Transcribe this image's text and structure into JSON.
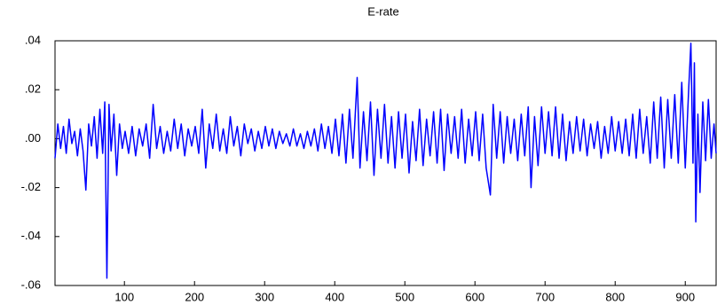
{
  "chart_data": {
    "type": "line",
    "title": "E-rate",
    "x": [
      1,
      5,
      9,
      13,
      17,
      21,
      25,
      29,
      33,
      37,
      41,
      45,
      49,
      53,
      57,
      61,
      65,
      69,
      72,
      75,
      78,
      81,
      85,
      89,
      93,
      97,
      101,
      106,
      111,
      116,
      121,
      126,
      131,
      136,
      141,
      146,
      151,
      156,
      161,
      166,
      171,
      176,
      181,
      186,
      191,
      196,
      201,
      206,
      211,
      216,
      221,
      226,
      231,
      236,
      241,
      246,
      251,
      256,
      261,
      266,
      271,
      276,
      281,
      286,
      291,
      296,
      301,
      306,
      311,
      316,
      321,
      326,
      331,
      336,
      341,
      346,
      351,
      356,
      361,
      366,
      371,
      376,
      381,
      386,
      391,
      396,
      401,
      406,
      411,
      416,
      421,
      426,
      432,
      436,
      441,
      446,
      451,
      456,
      461,
      466,
      471,
      476,
      481,
      486,
      491,
      496,
      501,
      506,
      511,
      516,
      521,
      526,
      531,
      536,
      541,
      546,
      551,
      556,
      561,
      566,
      571,
      576,
      581,
      586,
      591,
      596,
      601,
      606,
      611,
      616,
      622,
      626,
      631,
      636,
      641,
      646,
      651,
      656,
      661,
      666,
      671,
      676,
      680,
      685,
      690,
      695,
      700,
      705,
      710,
      715,
      720,
      725,
      730,
      735,
      740,
      745,
      750,
      755,
      760,
      765,
      770,
      775,
      780,
      785,
      790,
      795,
      800,
      805,
      810,
      815,
      820,
      825,
      830,
      835,
      840,
      845,
      850,
      855,
      860,
      865,
      870,
      875,
      880,
      885,
      890,
      895,
      900,
      905,
      908,
      911,
      913,
      915,
      918,
      921,
      925,
      929,
      933,
      937,
      941,
      944
    ],
    "series": [
      {
        "name": "E-rate",
        "color": "#0000ff",
        "values": [
          -0.008,
          0.006,
          -0.004,
          0.005,
          -0.006,
          0.008,
          -0.002,
          0.003,
          -0.007,
          0.004,
          -0.005,
          -0.021,
          0.006,
          -0.003,
          0.009,
          -0.008,
          0.012,
          -0.006,
          0.015,
          -0.057,
          0.014,
          -0.005,
          0.01,
          -0.015,
          0.006,
          -0.004,
          0.003,
          -0.006,
          0.005,
          -0.007,
          0.004,
          -0.003,
          0.006,
          -0.008,
          0.014,
          -0.004,
          0.005,
          -0.006,
          0.003,
          -0.005,
          0.008,
          -0.004,
          0.006,
          -0.007,
          0.004,
          -0.003,
          0.005,
          -0.006,
          0.012,
          -0.012,
          0.006,
          -0.004,
          0.01,
          -0.005,
          0.004,
          -0.006,
          0.009,
          -0.003,
          0.005,
          -0.007,
          0.006,
          -0.002,
          0.004,
          -0.005,
          0.003,
          -0.004,
          0.005,
          -0.003,
          0.004,
          -0.004,
          0.003,
          -0.002,
          0.002,
          -0.003,
          0.004,
          -0.003,
          0.002,
          -0.004,
          0.003,
          -0.003,
          0.004,
          -0.005,
          0.006,
          -0.004,
          0.005,
          -0.006,
          0.008,
          -0.007,
          0.01,
          -0.01,
          0.012,
          -0.008,
          0.025,
          -0.012,
          0.011,
          -0.009,
          0.015,
          -0.015,
          0.012,
          -0.008,
          0.014,
          -0.01,
          0.009,
          -0.012,
          0.011,
          -0.008,
          0.01,
          -0.014,
          0.007,
          -0.009,
          0.012,
          -0.011,
          0.008,
          -0.007,
          0.011,
          -0.01,
          0.012,
          -0.013,
          0.01,
          -0.006,
          0.009,
          -0.008,
          0.012,
          -0.01,
          0.008,
          -0.007,
          0.011,
          -0.009,
          0.01,
          -0.012,
          -0.023,
          0.014,
          -0.008,
          0.011,
          -0.01,
          0.009,
          -0.006,
          0.008,
          -0.009,
          0.01,
          -0.007,
          0.013,
          -0.02,
          0.009,
          -0.011,
          0.013,
          -0.006,
          0.011,
          -0.007,
          0.013,
          -0.008,
          0.01,
          -0.009,
          0.007,
          -0.006,
          0.009,
          -0.005,
          0.008,
          -0.007,
          0.006,
          -0.004,
          0.007,
          -0.008,
          0.005,
          -0.006,
          0.009,
          -0.005,
          0.007,
          -0.006,
          0.008,
          -0.007,
          0.01,
          -0.008,
          0.012,
          -0.006,
          0.009,
          -0.01,
          0.015,
          -0.008,
          0.017,
          -0.012,
          0.016,
          -0.008,
          0.018,
          -0.01,
          0.023,
          -0.012,
          0.021,
          0.039,
          -0.01,
          0.031,
          -0.034,
          0.01,
          -0.022,
          0.015,
          -0.009,
          0.016,
          -0.008,
          0.006,
          -0.006
        ]
      }
    ],
    "xlim": [
      1,
      944
    ],
    "xticks": [
      100,
      200,
      300,
      400,
      500,
      600,
      700,
      800,
      900
    ],
    "ylim": [
      -0.06,
      0.04
    ],
    "yticks": [
      {
        "value": -0.06,
        "label": "-.06"
      },
      {
        "value": -0.04,
        "label": "-.04"
      },
      {
        "value": -0.02,
        "label": "-.02"
      },
      {
        "value": 0,
        "label": ".00"
      },
      {
        "value": 0.02,
        "label": ".02"
      },
      {
        "value": 0.04,
        "label": ".04"
      }
    ],
    "grid": false
  }
}
